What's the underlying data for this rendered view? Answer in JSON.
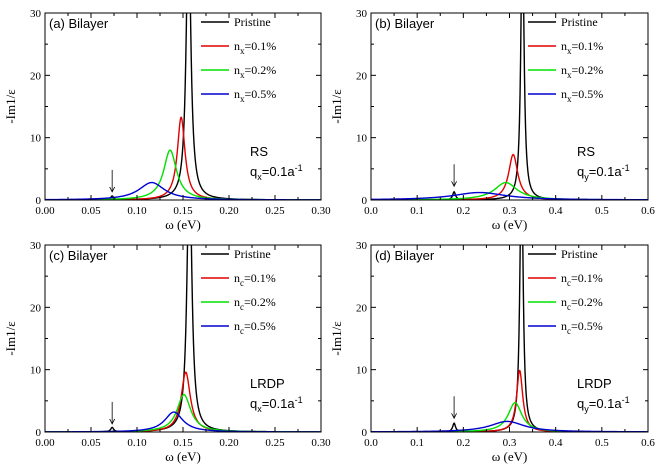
{
  "colors": {
    "pristine": "#000000",
    "n01": "#e00000",
    "n02": "#00e000",
    "n05": "#0000d0"
  },
  "chart_data": [
    {
      "type": "line",
      "panel_label": "(a) Bilayer",
      "xlabel": "ω (eV)",
      "ylabel": "-Im1/ε",
      "xlim": [
        0,
        0.3
      ],
      "ylim": [
        0,
        30
      ],
      "xticks": [
        "0.00",
        "0.05",
        "0.10",
        "0.15",
        "0.20",
        "0.25",
        "0.30"
      ],
      "yticks": [
        "0",
        "10",
        "20",
        "30"
      ],
      "annotation_lines": [
        "RS",
        "qx=0.1a-1"
      ],
      "arrow_at": [
        0.073,
        1.3
      ],
      "series": [
        {
          "name": "Pristine",
          "color_key": "pristine",
          "peak_x": 0.156,
          "peak_y": 45,
          "width": 0.003
        },
        {
          "name": "nx=0.1%",
          "color_key": "n01",
          "peak_x": 0.148,
          "peak_y": 13.3,
          "width": 0.005
        },
        {
          "name": "nx=0.2%",
          "color_key": "n02",
          "peak_x": 0.136,
          "peak_y": 8.0,
          "width": 0.0085
        },
        {
          "name": "nx=0.5%",
          "color_key": "n05",
          "peak_x": 0.116,
          "peak_y": 2.8,
          "width": 0.017
        }
      ],
      "small_peak": {
        "x": 0.073,
        "y": 0.6
      }
    },
    {
      "type": "line",
      "panel_label": "(b) Bilayer",
      "xlabel": "ω (eV)",
      "ylabel": "-Im1/ε",
      "xlim": [
        0,
        0.6
      ],
      "ylim": [
        0,
        30
      ],
      "xticks": [
        "0.0",
        "0.1",
        "0.2",
        "0.3",
        "0.4",
        "0.5",
        "0.6"
      ],
      "yticks": [
        "0",
        "10",
        "20",
        "30"
      ],
      "annotation_lines": [
        "RS",
        "qy=0.1a-1"
      ],
      "arrow_at": [
        0.18,
        2.2
      ],
      "series": [
        {
          "name": "Pristine",
          "color_key": "pristine",
          "peak_x": 0.328,
          "peak_y": 45,
          "width": 0.004
        },
        {
          "name": "nx=0.1%",
          "color_key": "n01",
          "peak_x": 0.308,
          "peak_y": 7.3,
          "width": 0.012
        },
        {
          "name": "nx=0.2%",
          "color_key": "n02",
          "peak_x": 0.292,
          "peak_y": 2.8,
          "width": 0.03
        },
        {
          "name": "nx=0.5%",
          "color_key": "n05",
          "peak_x": 0.235,
          "peak_y": 1.2,
          "width": 0.07
        }
      ],
      "small_peak": {
        "x": 0.18,
        "y": 1.3
      }
    },
    {
      "type": "line",
      "panel_label": "(c) Bilayer",
      "xlabel": "ω (eV)",
      "ylabel": "-Im1/ε",
      "xlim": [
        0,
        0.3
      ],
      "ylim": [
        0,
        30
      ],
      "xticks": [
        "0.00",
        "0.05",
        "0.10",
        "0.15",
        "0.20",
        "0.25",
        "0.30"
      ],
      "yticks": [
        "0",
        "10",
        "20",
        "30"
      ],
      "annotation_lines": [
        "LRDP",
        "qx=0.1a-1"
      ],
      "arrow_at": [
        0.073,
        1.3
      ],
      "series": [
        {
          "name": "Pristine",
          "color_key": "pristine",
          "peak_x": 0.157,
          "peak_y": 45,
          "width": 0.003
        },
        {
          "name": "nc=0.1%",
          "color_key": "n01",
          "peak_x": 0.153,
          "peak_y": 9.6,
          "width": 0.006
        },
        {
          "name": "nc=0.2%",
          "color_key": "n02",
          "peak_x": 0.151,
          "peak_y": 6.0,
          "width": 0.009
        },
        {
          "name": "nc=0.5%",
          "color_key": "n05",
          "peak_x": 0.14,
          "peak_y": 3.2,
          "width": 0.012
        }
      ],
      "small_peak": {
        "x": 0.073,
        "y": 0.7
      }
    },
    {
      "type": "line",
      "panel_label": "(d) Bilayer",
      "xlabel": "ω (eV)",
      "ylabel": "-Im1/ε",
      "xlim": [
        0,
        0.6
      ],
      "ylim": [
        0,
        30
      ],
      "xticks": [
        "0.0",
        "0.1",
        "0.2",
        "0.3",
        "0.4",
        "0.5",
        "0.6"
      ],
      "yticks": [
        "0",
        "10",
        "20",
        "30"
      ],
      "annotation_lines": [
        "LRDP",
        "qy=0.1a-1"
      ],
      "arrow_at": [
        0.18,
        2.2
      ],
      "series": [
        {
          "name": "Pristine",
          "color_key": "pristine",
          "peak_x": 0.326,
          "peak_y": 45,
          "width": 0.004
        },
        {
          "name": "nc=0.1%",
          "color_key": "n01",
          "peak_x": 0.322,
          "peak_y": 9.9,
          "width": 0.008
        },
        {
          "name": "nc=0.2%",
          "color_key": "n02",
          "peak_x": 0.312,
          "peak_y": 4.7,
          "width": 0.018
        },
        {
          "name": "nc=0.5%",
          "color_key": "n05",
          "peak_x": 0.295,
          "peak_y": 1.7,
          "width": 0.045
        }
      ],
      "small_peak": {
        "x": 0.18,
        "y": 1.4
      }
    }
  ]
}
